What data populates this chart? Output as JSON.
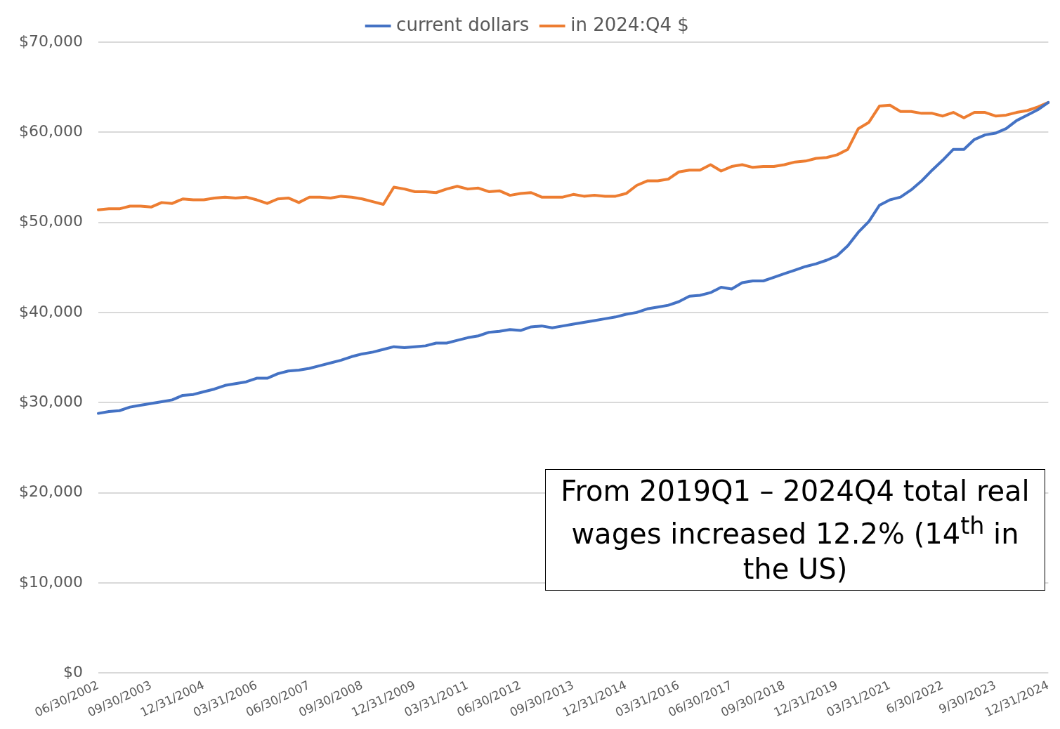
{
  "chart_data": {
    "type": "line",
    "categories": [
      "06/30/2002",
      null,
      null,
      null,
      null,
      "09/30/2003",
      null,
      null,
      null,
      null,
      "12/31/2004",
      null,
      null,
      null,
      null,
      "03/31/2006",
      null,
      null,
      null,
      null,
      "06/30/2007",
      null,
      null,
      null,
      null,
      "09/30/2008",
      null,
      null,
      null,
      null,
      "12/31/2009",
      null,
      null,
      null,
      null,
      "03/31/2011",
      null,
      null,
      null,
      null,
      "06/30/2012",
      null,
      null,
      null,
      null,
      "09/30/2013",
      null,
      null,
      null,
      null,
      "12/31/2014",
      null,
      null,
      null,
      null,
      "03/31/2016",
      null,
      null,
      null,
      null,
      "06/30/2017",
      null,
      null,
      null,
      null,
      "09/30/2018",
      null,
      null,
      null,
      null,
      "12/31/2019",
      null,
      null,
      null,
      null,
      "03/31/2021",
      null,
      null,
      null,
      null,
      "6/30/2022",
      null,
      null,
      null,
      null,
      "9/30/2023",
      null,
      null,
      null,
      null,
      "12/31/2024"
    ],
    "series": [
      {
        "name": "current dollars",
        "color": "#4472c4",
        "values": [
          28800,
          29000,
          29100,
          29500,
          29700,
          29900,
          30100,
          30300,
          30800,
          30900,
          31200,
          31500,
          31900,
          32100,
          32300,
          32700,
          32700,
          33200,
          33500,
          33600,
          33800,
          34100,
          34400,
          34700,
          35100,
          35400,
          35600,
          35900,
          36200,
          36100,
          36200,
          36300,
          36600,
          36600,
          36900,
          37200,
          37400,
          37800,
          37900,
          38100,
          38000,
          38400,
          38500,
          38300,
          38500,
          38700,
          38900,
          39100,
          39300,
          39500,
          39800,
          40000,
          40400,
          40600,
          40800,
          41200,
          41800,
          41900,
          42200,
          42800,
          42600,
          43300,
          43500,
          43500,
          43900,
          44300,
          44700,
          45100,
          45400,
          45800,
          46300,
          47400,
          48900,
          50100,
          51900,
          52500,
          52800,
          53600,
          54600,
          55800,
          56900,
          58100,
          58100,
          59200,
          59700,
          59900,
          60400,
          61300,
          61900,
          62500,
          63300
        ]
      },
      {
        "name": "in 2024:Q4 $",
        "color": "#ed7d31",
        "values": [
          51400,
          51500,
          51500,
          51800,
          51800,
          51700,
          52200,
          52100,
          52600,
          52500,
          52500,
          52700,
          52800,
          52700,
          52800,
          52500,
          52100,
          52600,
          52700,
          52200,
          52800,
          52800,
          52700,
          52900,
          52800,
          52600,
          52300,
          52000,
          53900,
          53700,
          53400,
          53400,
          53300,
          53700,
          54000,
          53700,
          53800,
          53400,
          53500,
          53000,
          53200,
          53300,
          52800,
          52800,
          52800,
          53100,
          52900,
          53000,
          52900,
          52900,
          53200,
          54100,
          54600,
          54600,
          54800,
          55600,
          55800,
          55800,
          56400,
          55700,
          56200,
          56400,
          56100,
          56200,
          56200,
          56400,
          56700,
          56800,
          57100,
          57200,
          57500,
          58100,
          60400,
          61100,
          62900,
          63000,
          62300,
          62300,
          62100,
          62100,
          61800,
          62200,
          61600,
          62200,
          62200,
          61800,
          61900,
          62200,
          62400,
          62800,
          63300
        ]
      }
    ],
    "ylim": [
      0,
      70000
    ],
    "yticks": [
      {
        "value": 0,
        "label": "$0"
      },
      {
        "value": 10000,
        "label": "$10,000"
      },
      {
        "value": 20000,
        "label": "$20,000"
      },
      {
        "value": 30000,
        "label": "$30,000"
      },
      {
        "value": 40000,
        "label": "$40,000"
      },
      {
        "value": 50000,
        "label": "$50,000"
      },
      {
        "value": 60000,
        "label": "$60,000"
      },
      {
        "value": 70000,
        "label": "$70,000"
      }
    ],
    "grid": "y",
    "legend": "top",
    "marker": "none",
    "line_style": "solid",
    "annotations": [
      "From 2019Q1 – 2024Q4 total real wages increased 12.2% (14$^{th}$ in the US)"
    ]
  }
}
